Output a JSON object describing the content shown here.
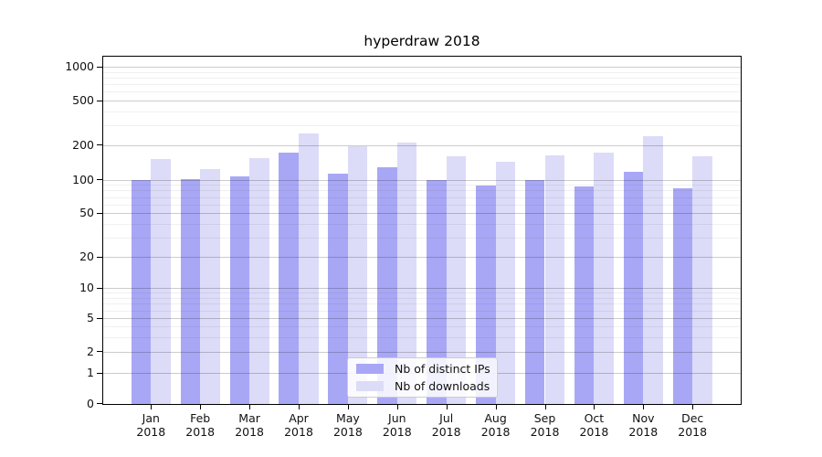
{
  "chart_data": {
    "type": "bar",
    "title": "hyperdraw 2018",
    "categories": [
      "Jan 2018",
      "Feb 2018",
      "Mar 2018",
      "Apr 2018",
      "May 2018",
      "Jun 2018",
      "Jul 2018",
      "Aug 2018",
      "Sep 2018",
      "Oct 2018",
      "Nov 2018",
      "Dec 2018"
    ],
    "series": [
      {
        "name": "Nb of distinct IPs",
        "color": "#a8a7f5",
        "values": [
          100,
          103,
          108,
          172,
          115,
          130,
          100,
          90,
          101,
          88,
          119,
          85
        ]
      },
      {
        "name": "Nb of downloads",
        "color": "#dcdbf8",
        "values": [
          153,
          125,
          155,
          258,
          198,
          210,
          162,
          145,
          165,
          172,
          240,
          160
        ]
      }
    ],
    "xlabel": "",
    "ylabel": "",
    "y_scale": "symlog",
    "y_ticks": [
      0,
      1,
      2,
      5,
      10,
      20,
      50,
      100,
      200,
      500,
      1000
    ],
    "ylim": [
      0,
      1150
    ],
    "grid": true,
    "legend_position": "lower-center"
  }
}
